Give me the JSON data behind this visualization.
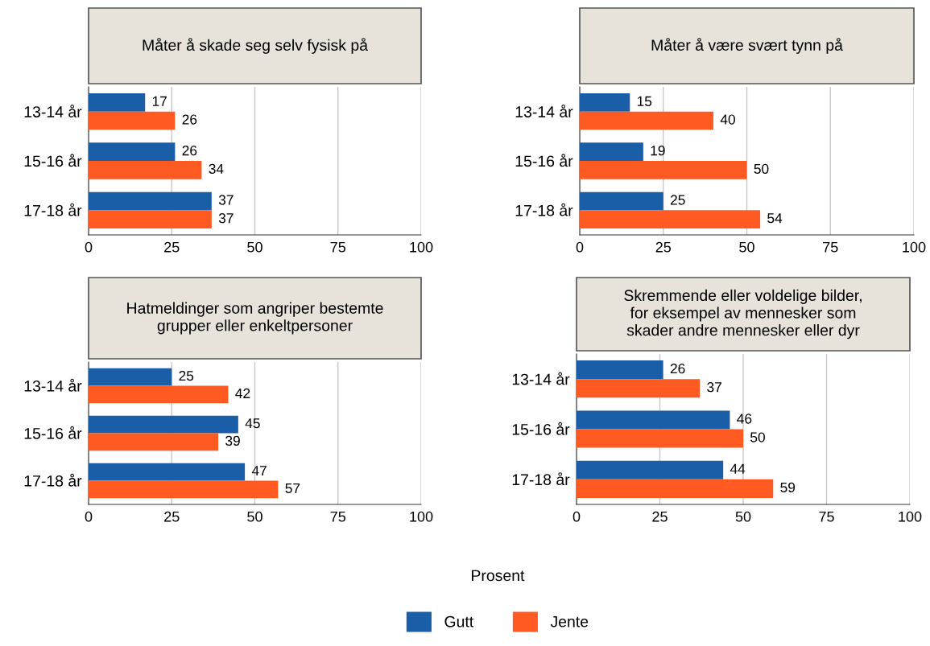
{
  "chart_data": [
    {
      "type": "bar",
      "orientation": "horizontal",
      "title": "Måter å skade seg selv fysisk på",
      "categories": [
        "13-14 år",
        "15-16 år",
        "17-18 år"
      ],
      "series": [
        {
          "name": "Gutt",
          "color": "#1a5ea8",
          "values": [
            17,
            26,
            37
          ]
        },
        {
          "name": "Jente",
          "color": "#ff5a22",
          "values": [
            26,
            34,
            37
          ]
        }
      ],
      "xlim": [
        0,
        100
      ],
      "xticks": [
        0,
        25,
        50,
        75,
        100
      ],
      "grid": "x",
      "data_labels": true,
      "legend": "bottom"
    },
    {
      "type": "bar",
      "orientation": "horizontal",
      "title": "Måter å være svært tynn på",
      "categories": [
        "13-14 år",
        "15-16 år",
        "17-18 år"
      ],
      "series": [
        {
          "color": "#1a5ea8",
          "values": [
            15,
            19,
            25
          ]
        },
        {
          "color": "#ff5a22",
          "values": [
            40,
            50,
            54
          ]
        }
      ],
      "xlim": [
        0,
        100
      ],
      "xticks": [
        0,
        25,
        50,
        75,
        100
      ],
      "grid": "x",
      "data_labels": true
    },
    {
      "type": "bar",
      "orientation": "horizontal",
      "title": "Hatmeldinger som angriper bestemte\ngrupper eller enkeltpersoner",
      "categories": [
        "13-14 år",
        "15-16 år",
        "17-18 år"
      ],
      "series": [
        {
          "color": "#1a5ea8",
          "values": [
            25,
            45,
            47
          ]
        },
        {
          "color": "#ff5a22",
          "values": [
            42,
            39,
            57
          ]
        }
      ],
      "xlim": [
        0,
        100
      ],
      "xticks": [
        0,
        25,
        50,
        75,
        100
      ],
      "grid": "x",
      "data_labels": true
    },
    {
      "type": "bar",
      "orientation": "horizontal",
      "title": "Skremmende eller voldelige bilder,\nfor eksempel av mennesker som\nskader andre mennesker eller dyr",
      "categories": [
        "13-14 år",
        "15-16 år",
        "17-18 år"
      ],
      "series": [
        {
          "color": "#1a5ea8",
          "values": [
            26,
            46,
            44
          ]
        },
        {
          "color": "#ff5a22",
          "values": [
            37,
            50,
            59
          ]
        }
      ],
      "xlim": [
        0,
        100
      ],
      "xticks": [
        0,
        25,
        50,
        75,
        100
      ],
      "grid": "x",
      "data_labels": true,
      "xlabel": "Prosent"
    }
  ]
}
